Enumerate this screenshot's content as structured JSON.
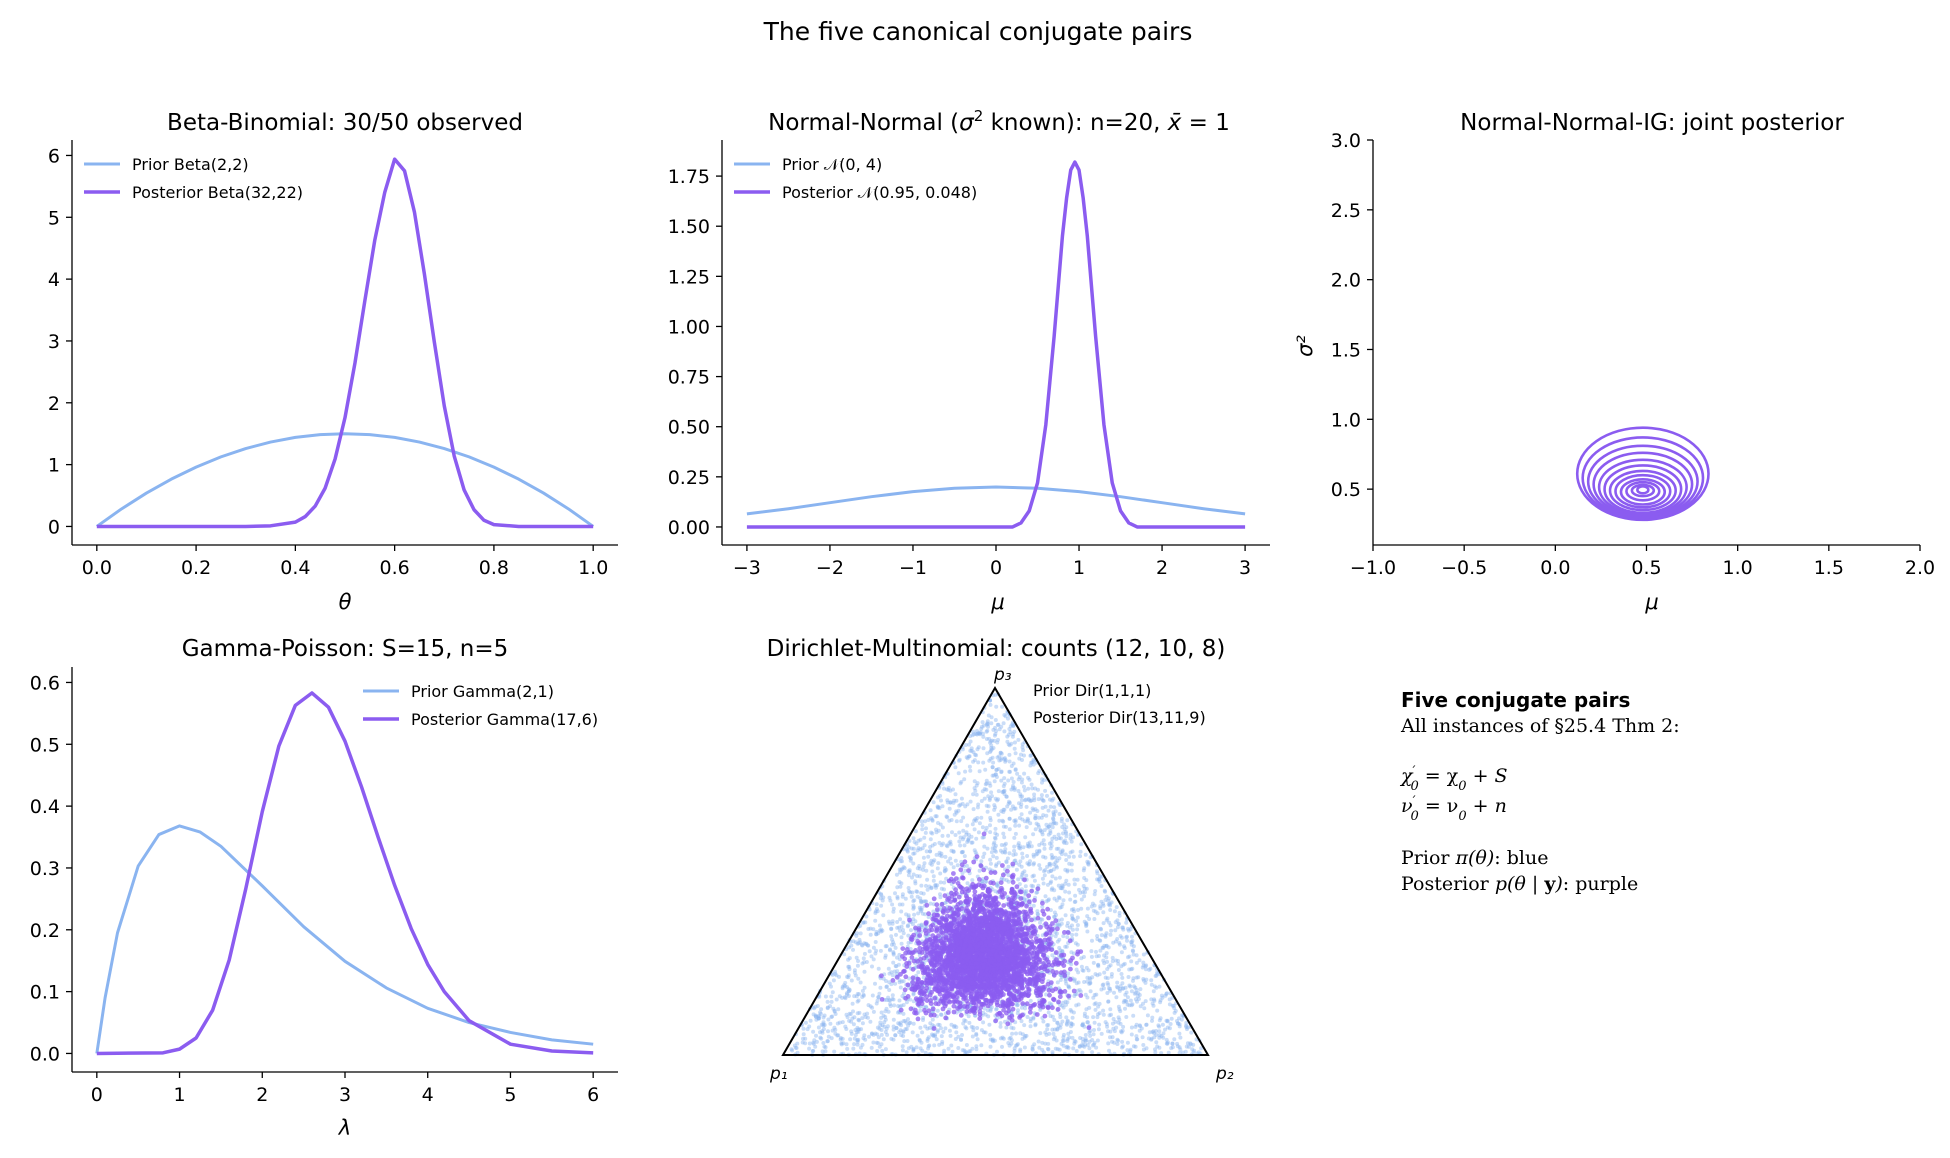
{
  "figure": {
    "suptitle": "The five canonical conjugate pairs"
  },
  "colors": {
    "prior": "#8ab4f0",
    "posterior": "#8b5cf0",
    "axis": "#000000"
  },
  "chart_data": [
    {
      "id": "beta",
      "type": "line",
      "title": "Beta-Binomial: 30/50 observed",
      "xlabel": "θ",
      "ylabel": "",
      "xlim": [
        -0.05,
        1.05
      ],
      "ylim": [
        -0.3,
        6.25
      ],
      "xticks": [
        0,
        0.2,
        0.4,
        0.6,
        0.8,
        1.0
      ],
      "xtick_labels": [
        "0.0",
        "0.2",
        "0.4",
        "0.6",
        "0.8",
        "1.0"
      ],
      "yticks": [
        0,
        1,
        2,
        3,
        4,
        5,
        6
      ],
      "ytick_labels": [
        "0",
        "1",
        "2",
        "3",
        "4",
        "5",
        "6"
      ],
      "legend": "top-left",
      "series": [
        {
          "name": "Prior Beta(2,2)",
          "role": "prior",
          "x": [
            0,
            0.05,
            0.1,
            0.15,
            0.2,
            0.25,
            0.3,
            0.35,
            0.4,
            0.45,
            0.5,
            0.55,
            0.6,
            0.65,
            0.7,
            0.75,
            0.8,
            0.85,
            0.9,
            0.95,
            1.0
          ],
          "y": [
            0,
            0.285,
            0.54,
            0.765,
            0.96,
            1.125,
            1.26,
            1.365,
            1.44,
            1.485,
            1.5,
            1.485,
            1.44,
            1.365,
            1.26,
            1.125,
            0.96,
            0.765,
            0.54,
            0.285,
            0
          ]
        },
        {
          "name": "Posterior Beta(32,22)",
          "role": "posterior",
          "x": [
            0,
            0.3,
            0.35,
            0.4,
            0.42,
            0.44,
            0.46,
            0.48,
            0.5,
            0.52,
            0.54,
            0.56,
            0.58,
            0.6,
            0.62,
            0.64,
            0.66,
            0.68,
            0.7,
            0.72,
            0.74,
            0.76,
            0.78,
            0.8,
            0.85,
            1.0
          ],
          "y": [
            0,
            0.0,
            0.01,
            0.07,
            0.16,
            0.33,
            0.62,
            1.09,
            1.76,
            2.64,
            3.65,
            4.63,
            5.4,
            5.94,
            5.75,
            5.08,
            4.08,
            2.98,
            1.95,
            1.14,
            0.59,
            0.27,
            0.1,
            0.03,
            0.0,
            0
          ]
        }
      ]
    },
    {
      "id": "normal",
      "type": "line",
      "title": "Normal-Normal (σ² known): n=20, x̄ = 1",
      "title_parts": [
        "Normal-Normal (",
        "σ",
        "2",
        " known): n=20, ",
        "x̄",
        " = 1"
      ],
      "xlabel": "μ",
      "ylabel": "",
      "xlim": [
        -3.3,
        3.3
      ],
      "ylim": [
        -0.09,
        1.93
      ],
      "xticks": [
        -3,
        -2,
        -1,
        0,
        1,
        2,
        3
      ],
      "xtick_labels": [
        "−3",
        "−2",
        "−1",
        "0",
        "1",
        "2",
        "3"
      ],
      "yticks": [
        0,
        0.25,
        0.5,
        0.75,
        1.0,
        1.25,
        1.5,
        1.75
      ],
      "ytick_labels": [
        "0.00",
        "0.25",
        "0.50",
        "0.75",
        "1.00",
        "1.25",
        "1.50",
        "1.75"
      ],
      "legend": "top-left",
      "series": [
        {
          "name": "Prior 𝒩(0, 4)",
          "role": "prior",
          "x": [
            -3,
            -2.5,
            -2,
            -1.5,
            -1,
            -0.5,
            0,
            0.5,
            1,
            1.5,
            2,
            2.5,
            3
          ],
          "y": [
            0.065,
            0.091,
            0.121,
            0.151,
            0.176,
            0.193,
            0.199,
            0.193,
            0.176,
            0.151,
            0.121,
            0.091,
            0.065
          ]
        },
        {
          "name": "Posterior 𝒩(0.95, 0.048)",
          "role": "posterior",
          "x": [
            -3,
            0.2,
            0.3,
            0.4,
            0.5,
            0.6,
            0.7,
            0.8,
            0.85,
            0.9,
            0.95,
            1.0,
            1.05,
            1.1,
            1.2,
            1.3,
            1.4,
            1.5,
            1.6,
            1.7,
            3
          ],
          "y": [
            0,
            0.0,
            0.02,
            0.08,
            0.22,
            0.51,
            0.95,
            1.45,
            1.64,
            1.78,
            1.82,
            1.78,
            1.64,
            1.45,
            0.95,
            0.51,
            0.22,
            0.08,
            0.02,
            0.0,
            0
          ]
        }
      ]
    },
    {
      "id": "nig",
      "type": "contour",
      "title": "Normal-Normal-IG: joint posterior",
      "xlabel": "μ",
      "ylabel": "σ²",
      "xlim": [
        -1.0,
        2.0
      ],
      "ylim": [
        0.1,
        3.0
      ],
      "xticks": [
        -1.0,
        -0.5,
        0.0,
        0.5,
        1.0,
        1.5,
        2.0
      ],
      "xtick_labels": [
        "−1.0",
        "−0.5",
        "0.0",
        "0.5",
        "1.0",
        "1.5",
        "2.0"
      ],
      "yticks": [
        0.5,
        1.0,
        1.5,
        2.0,
        2.5,
        3.0
      ],
      "ytick_labels": [
        "0.5",
        "1.0",
        "1.5",
        "2.0",
        "2.5",
        "3.0"
      ],
      "contours": {
        "center_mu": 0.48,
        "center_sigma2": 0.5,
        "levels": [
          {
            "mu_half_width": 0.36,
            "sigma2_low": 0.28,
            "sigma2_high": 0.94
          },
          {
            "mu_half_width": 0.33,
            "sigma2_low": 0.29,
            "sigma2_high": 0.87
          },
          {
            "mu_half_width": 0.3,
            "sigma2_low": 0.3,
            "sigma2_high": 0.81
          },
          {
            "mu_half_width": 0.27,
            "sigma2_low": 0.31,
            "sigma2_high": 0.76
          },
          {
            "mu_half_width": 0.24,
            "sigma2_low": 0.32,
            "sigma2_high": 0.71
          },
          {
            "mu_half_width": 0.21,
            "sigma2_low": 0.33,
            "sigma2_high": 0.67
          },
          {
            "mu_half_width": 0.18,
            "sigma2_low": 0.35,
            "sigma2_high": 0.63
          },
          {
            "mu_half_width": 0.15,
            "sigma2_low": 0.37,
            "sigma2_high": 0.6
          },
          {
            "mu_half_width": 0.12,
            "sigma2_low": 0.39,
            "sigma2_high": 0.57
          },
          {
            "mu_half_width": 0.09,
            "sigma2_low": 0.42,
            "sigma2_high": 0.55
          },
          {
            "mu_half_width": 0.06,
            "sigma2_low": 0.45,
            "sigma2_high": 0.53
          },
          {
            "mu_half_width": 0.03,
            "sigma2_low": 0.47,
            "sigma2_high": 0.52
          }
        ]
      }
    },
    {
      "id": "gamma",
      "type": "line",
      "title": "Gamma-Poisson: S=15, n=5",
      "xlabel": "λ",
      "ylabel": "",
      "xlim": [
        -0.3,
        6.3
      ],
      "ylim": [
        -0.03,
        0.625
      ],
      "xticks": [
        0,
        1,
        2,
        3,
        4,
        5,
        6
      ],
      "xtick_labels": [
        "0",
        "1",
        "2",
        "3",
        "4",
        "5",
        "6"
      ],
      "yticks": [
        0,
        0.1,
        0.2,
        0.3,
        0.4,
        0.5,
        0.6
      ],
      "ytick_labels": [
        "0.0",
        "0.1",
        "0.2",
        "0.3",
        "0.4",
        "0.5",
        "0.6"
      ],
      "legend": "top-right",
      "series": [
        {
          "name": "Prior Gamma(2,1)",
          "role": "prior",
          "x": [
            0,
            0.1,
            0.25,
            0.5,
            0.75,
            1.0,
            1.25,
            1.5,
            2.0,
            2.5,
            3.0,
            3.5,
            4.0,
            4.5,
            5.0,
            5.5,
            6.0
          ],
          "y": [
            0,
            0.09,
            0.195,
            0.303,
            0.354,
            0.368,
            0.358,
            0.335,
            0.271,
            0.205,
            0.149,
            0.106,
            0.073,
            0.05,
            0.034,
            0.022,
            0.015
          ]
        },
        {
          "name": "Posterior Gamma(17,6)",
          "role": "posterior",
          "x": [
            0,
            0.8,
            1.0,
            1.2,
            1.4,
            1.6,
            1.8,
            2.0,
            2.2,
            2.4,
            2.6,
            2.8,
            3.0,
            3.2,
            3.4,
            3.6,
            3.8,
            4.0,
            4.2,
            4.5,
            5.0,
            5.5,
            6.0
          ],
          "y": [
            0,
            0.001,
            0.007,
            0.025,
            0.07,
            0.151,
            0.266,
            0.391,
            0.497,
            0.563,
            0.583,
            0.56,
            0.505,
            0.431,
            0.35,
            0.272,
            0.202,
            0.144,
            0.1,
            0.053,
            0.015,
            0.004,
            0.001
          ]
        }
      ]
    },
    {
      "id": "dirichlet",
      "type": "scatter",
      "title": "Dirichlet-Multinomial: counts (12, 10, 8)",
      "vertex_labels": [
        "p₁",
        "p₂",
        "p₃"
      ],
      "legend": "top-right",
      "series": [
        {
          "name": "Prior Dir(1,1,1)",
          "role": "prior",
          "alpha": [
            1,
            1,
            1
          ],
          "n_samples": 3000
        },
        {
          "name": "Posterior Dir(13,11,9)",
          "role": "posterior",
          "alpha": [
            13,
            11,
            9
          ],
          "n_samples": 3000
        }
      ]
    }
  ],
  "text_panel": {
    "heading": "Five conjugate pairs",
    "line1": "All instances of §25.4 Thm 2:",
    "eq1": [
      "χ",
      "′",
      "0",
      " = χ",
      "0",
      " + ",
      "S"
    ],
    "eq2": [
      "ν",
      "′",
      "0",
      " = ν",
      "0",
      " + ",
      "n"
    ],
    "prior_line": [
      "Prior ",
      "π(θ)",
      ": blue"
    ],
    "posterior_line": [
      "Posterior ",
      "p(θ | ",
      "y",
      ")",
      ": purple"
    ]
  }
}
